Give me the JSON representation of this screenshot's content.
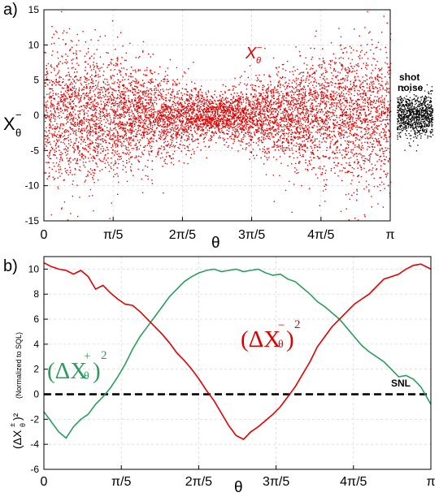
{
  "panel_labels": {
    "a": "a)",
    "b": "b)"
  },
  "colors": {
    "red": "#e00000",
    "green": "#2a9d5e",
    "black": "#000000"
  },
  "chart_data": [
    {
      "type": "scatter",
      "panel": "a)",
      "xlabel": "θ",
      "ylabel": "X",
      "ylabel_sup": "−",
      "ylabel_sub": "θ",
      "ylim": [
        -15,
        15
      ],
      "xlim": [
        0,
        3.1416
      ],
      "yticks": [
        -15,
        -10,
        -5,
        0,
        5,
        10,
        15
      ],
      "xtick_labels": [
        "0",
        "π/5",
        "2π/5",
        "3π/5",
        "4π/5",
        "π"
      ],
      "series_label": "X",
      "series_label_sup": "−",
      "series_label_sub": "θ",
      "shot_noise_label_1": "shot",
      "shot_noise_label_2": "noise",
      "envelope": {
        "x": [
          0,
          0.6283,
          1.2566,
          1.5708,
          1.885,
          2.5133,
          3.1416
        ],
        "std_dev": [
          5.2,
          4.2,
          2.3,
          1.4,
          2.3,
          4.2,
          5.2
        ]
      },
      "shot_noise_std_dev": 1.5
    },
    {
      "type": "line",
      "panel": "b)",
      "xlabel": "θ",
      "ylabel_prefix": "(ΔX",
      "ylabel_sup": "±",
      "ylabel_sub": "θ",
      "ylabel_suffix": ")²",
      "ylabel_note": "(Normalized to SQL)",
      "ylim": [
        -6,
        11
      ],
      "xlim": [
        0,
        3.1416
      ],
      "yticks": [
        -6,
        -4,
        -2,
        0,
        2,
        4,
        6,
        8,
        10
      ],
      "xtick_labels": [
        "0",
        "π/5",
        "2π/5",
        "3π/5",
        "4π/5",
        "π"
      ],
      "snl_label": "SNL",
      "snl_value": 0,
      "series": [
        {
          "name": "(ΔX−θ)²",
          "label_main": "(ΔX",
          "label_sup": "−",
          "label_sub": "θ",
          "label_end": ")",
          "label_exp": "2",
          "color": "#e00000",
          "x": [
            0,
            0.06,
            0.12,
            0.18,
            0.24,
            0.3,
            0.36,
            0.42,
            0.48,
            0.54,
            0.6,
            0.66,
            0.72,
            0.78,
            0.84,
            0.9,
            0.96,
            1.02,
            1.08,
            1.14,
            1.2,
            1.26,
            1.32,
            1.38,
            1.44,
            1.5,
            1.56,
            1.62,
            1.68,
            1.74,
            1.8,
            1.86,
            1.92,
            1.98,
            2.04,
            2.1,
            2.16,
            2.22,
            2.28,
            2.34,
            2.4,
            2.46,
            2.52,
            2.58,
            2.64,
            2.7,
            2.76,
            2.82,
            2.88,
            2.94,
            3.0,
            3.06,
            3.1416
          ],
          "y": [
            10.5,
            10.2,
            10.0,
            9.9,
            9.6,
            9.9,
            9.4,
            8.4,
            8.7,
            8.1,
            7.6,
            7.2,
            7.1,
            6.6,
            6.0,
            5.4,
            4.8,
            4.1,
            3.3,
            2.7,
            2.0,
            1.2,
            0.3,
            -0.5,
            -1.5,
            -2.5,
            -3.3,
            -3.6,
            -3.0,
            -2.6,
            -2.1,
            -1.6,
            -1.0,
            -0.2,
            0.6,
            1.6,
            2.6,
            3.8,
            4.6,
            5.4,
            6.0,
            6.6,
            7.2,
            7.6,
            8.0,
            8.6,
            9.2,
            9.4,
            9.6,
            10.0,
            10.3,
            10.4,
            10.0
          ]
        },
        {
          "name": "(ΔX+θ)²",
          "label_main": "(ΔX",
          "label_sup": "+",
          "label_sub": "θ",
          "label_end": ")",
          "label_exp": "2",
          "color": "#2a9d5e",
          "x": [
            0,
            0.06,
            0.12,
            0.18,
            0.24,
            0.3,
            0.36,
            0.42,
            0.48,
            0.54,
            0.6,
            0.66,
            0.72,
            0.78,
            0.84,
            0.9,
            0.96,
            1.02,
            1.08,
            1.14,
            1.2,
            1.26,
            1.32,
            1.38,
            1.44,
            1.5,
            1.56,
            1.62,
            1.68,
            1.74,
            1.8,
            1.86,
            1.92,
            1.98,
            2.04,
            2.1,
            2.16,
            2.22,
            2.28,
            2.34,
            2.4,
            2.46,
            2.52,
            2.58,
            2.64,
            2.7,
            2.76,
            2.82,
            2.88,
            2.94,
            3.0,
            3.06,
            3.1416
          ],
          "y": [
            -1.4,
            -2.2,
            -3.0,
            -3.5,
            -2.6,
            -2.0,
            -1.6,
            -0.8,
            -0.2,
            0.5,
            1.4,
            2.4,
            3.6,
            4.6,
            5.4,
            6.2,
            7.0,
            7.8,
            8.4,
            9.0,
            9.4,
            9.7,
            9.9,
            10.0,
            9.8,
            9.9,
            10.0,
            9.8,
            9.9,
            10.0,
            9.7,
            9.5,
            9.6,
            9.2,
            9.0,
            8.5,
            8.0,
            7.4,
            7.0,
            6.5,
            6.0,
            5.3,
            4.6,
            3.9,
            3.4,
            3.0,
            2.6,
            2.0,
            1.4,
            1.5,
            1.2,
            0.6,
            -0.8
          ]
        }
      ]
    }
  ]
}
